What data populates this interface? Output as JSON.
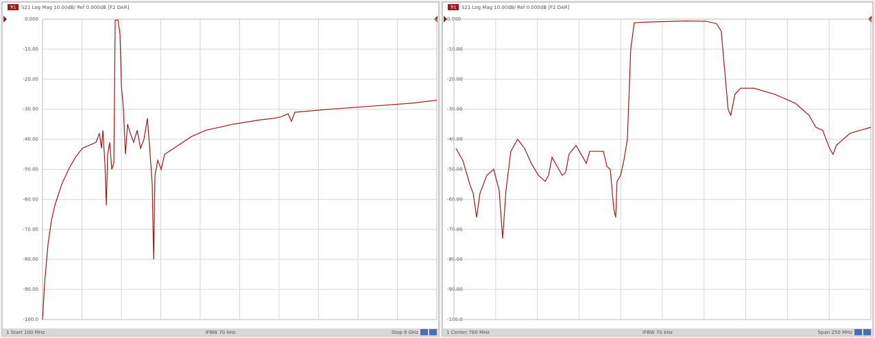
{
  "chart_data": [
    {
      "type": "line",
      "badge": "Tr1",
      "title": "S21 Log Mag 10.00dB/ Ref 0.000dB [F2 DAR]",
      "footer": [
        "1 Start 100 MHz",
        "IFBW 70 kHz",
        "Stop 6 GHz"
      ],
      "color": "#a01818",
      "xlim": [
        100,
        6000
      ],
      "xticks": [
        100,
        690,
        1280,
        1870,
        2460,
        3050,
        3640,
        4230,
        4820,
        5410,
        6000
      ],
      "ylim": [
        -100,
        0
      ],
      "yticks": [
        {
          "value": 0,
          "label": "0.000"
        },
        {
          "value": -10,
          "label": "-10.00"
        },
        {
          "value": -20,
          "label": "-20.00"
        },
        {
          "value": -30,
          "label": "-30.00"
        },
        {
          "value": -40,
          "label": "-40.00"
        },
        {
          "value": -50,
          "label": "-50.00"
        },
        {
          "value": -60,
          "label": "-60.00"
        },
        {
          "value": -70,
          "label": "-70.00"
        },
        {
          "value": -80,
          "label": "-80.00"
        },
        {
          "value": -90,
          "label": "-90.00"
        },
        {
          "value": -100,
          "label": "-100.0"
        }
      ],
      "grid": true,
      "x": [
        100,
        131,
        182,
        233,
        285,
        387,
        490,
        592,
        695,
        798,
        900,
        952,
        982,
        1003,
        1034,
        1054,
        1075,
        1106,
        1136,
        1167,
        1188,
        1229,
        1259,
        1280,
        1311,
        1341,
        1372,
        1413,
        1464,
        1516,
        1567,
        1618,
        1670,
        1701,
        1742,
        1762,
        1783,
        1824,
        1875,
        1926,
        2131,
        2337,
        2542,
        2952,
        3363,
        3568,
        3671,
        3773,
        3824,
        3876,
        4389,
        5004,
        5620,
        6000
      ],
      "values": [
        -100,
        -88,
        -75,
        -67,
        -62,
        -55,
        -50,
        -46,
        -43,
        -42,
        -41,
        -38,
        -43,
        -37,
        -48,
        -62,
        -45,
        -41,
        -50,
        -48,
        -0.3,
        -0.3,
        -5,
        -22,
        -30,
        -45,
        -35,
        -38,
        -41,
        -37,
        -43,
        -40,
        -33,
        -42,
        -55,
        -80,
        -52,
        -47,
        -50,
        -45,
        -42,
        -39,
        -37,
        -35,
        -33.5,
        -33,
        -32.5,
        -31.5,
        -34,
        -31,
        -30,
        -29,
        -28,
        -27
      ]
    },
    {
      "type": "line",
      "badge": "Tr1",
      "title": "S21 Log Mag 10.00dB/ Ref 0.000dB [F2 DAR]",
      "footer": [
        "1 Center 760 MHz",
        "IFBW 70 kHz",
        "Span 250 MHz"
      ],
      "color": "#a01818",
      "xlim": [
        635,
        885
      ],
      "xticks": [
        635,
        660,
        685,
        710,
        735,
        760,
        785,
        810,
        835,
        860,
        885
      ],
      "ylim": [
        -100,
        0
      ],
      "yticks": [
        {
          "value": 0,
          "label": "0.000"
        },
        {
          "value": -10,
          "label": "-10.00"
        },
        {
          "value": -20,
          "label": "-20.00"
        },
        {
          "value": -30,
          "label": "-30.00"
        },
        {
          "value": -40,
          "label": "-40.00"
        },
        {
          "value": -50,
          "label": "-50.00"
        },
        {
          "value": -60,
          "label": "-60.00"
        },
        {
          "value": -70,
          "label": "-70.00"
        },
        {
          "value": -80,
          "label": "-80.00"
        },
        {
          "value": -90,
          "label": "-90.00"
        },
        {
          "value": -100,
          "label": "-100.0"
        }
      ],
      "grid": true,
      "x": [
        636.2,
        640.3,
        644.5,
        646.5,
        648.6,
        650.6,
        654.7,
        658.8,
        662.1,
        664.2,
        666.2,
        669.1,
        673.2,
        677.3,
        681.4,
        685.6,
        689.7,
        691.7,
        693.8,
        695.8,
        697.9,
        699.9,
        702.0,
        704.0,
        708.2,
        712.3,
        714.3,
        716.4,
        720.5,
        724.6,
        726.7,
        728.7,
        730.8,
        732.0,
        732.8,
        734.9,
        736.9,
        739.0,
        741.0,
        743.1,
        749.3,
        761.6,
        773.9,
        786.2,
        792.4,
        795.3,
        797.8,
        799.4,
        801.0,
        803.5,
        806.8,
        815.0,
        827.3,
        839.7,
        847.9,
        852.0,
        856.1,
        860.2,
        862.3,
        864.3,
        868.4,
        872.5,
        878.7,
        885
      ],
      "values": [
        -43,
        -47,
        -55,
        -58,
        -66,
        -58,
        -52,
        -50,
        -57,
        -73,
        -57,
        -44,
        -40,
        -43,
        -48,
        -52,
        -54,
        -52,
        -46,
        -48,
        -50,
        -52,
        -51,
        -45,
        -42,
        -46,
        -48,
        -44,
        -44,
        -44,
        -49,
        -50,
        -63,
        -66,
        -54,
        -52,
        -47,
        -40,
        -10,
        -1.2,
        -1,
        -0.8,
        -0.6,
        -0.7,
        -1.5,
        -4,
        -20,
        -30,
        -32,
        -25,
        -23,
        -23,
        -25,
        -28,
        -32,
        -36,
        -37,
        -43,
        -45,
        -42,
        -40,
        -38,
        -37,
        -36
      ]
    }
  ]
}
